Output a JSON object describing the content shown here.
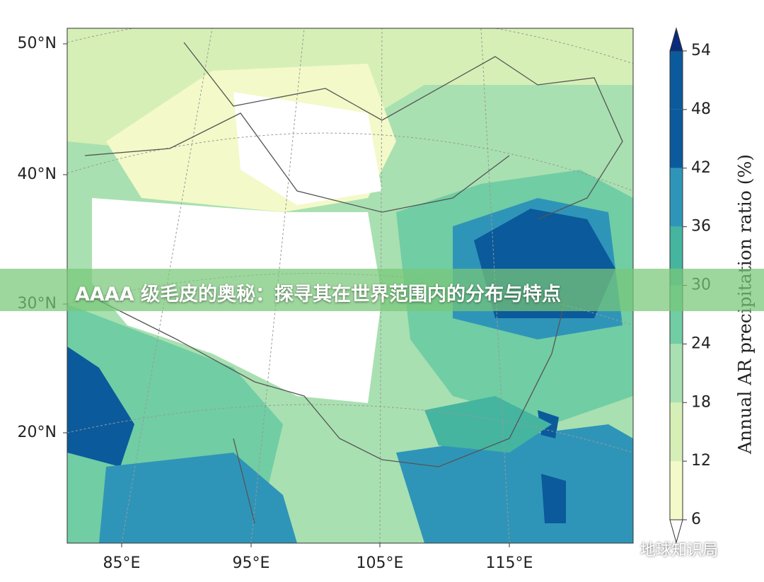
{
  "banner": {
    "title": "AAAA 级毛皮的奥秘：探寻其在世界范围内的分布与特点"
  },
  "map": {
    "lat_labels": [
      "50°N",
      "40°N",
      "30°N",
      "20°N"
    ],
    "lon_labels": [
      "85°E",
      "95°E",
      "105°E",
      "115°E"
    ]
  },
  "colorbar": {
    "label": "Annual AR precipitation ratio (%)",
    "ticks": [
      6,
      12,
      18,
      24,
      30,
      36,
      42,
      48,
      54
    ],
    "colors": [
      "#f3f9c8",
      "#d6efb6",
      "#a9e0b1",
      "#71cda4",
      "#45b5a0",
      "#2f95b8",
      "#0b5a9c",
      "#0b5a9c"
    ],
    "extend_low": "#ffffff",
    "extend_high": "#0a2a7c"
  },
  "watermark": "地球知识局"
}
